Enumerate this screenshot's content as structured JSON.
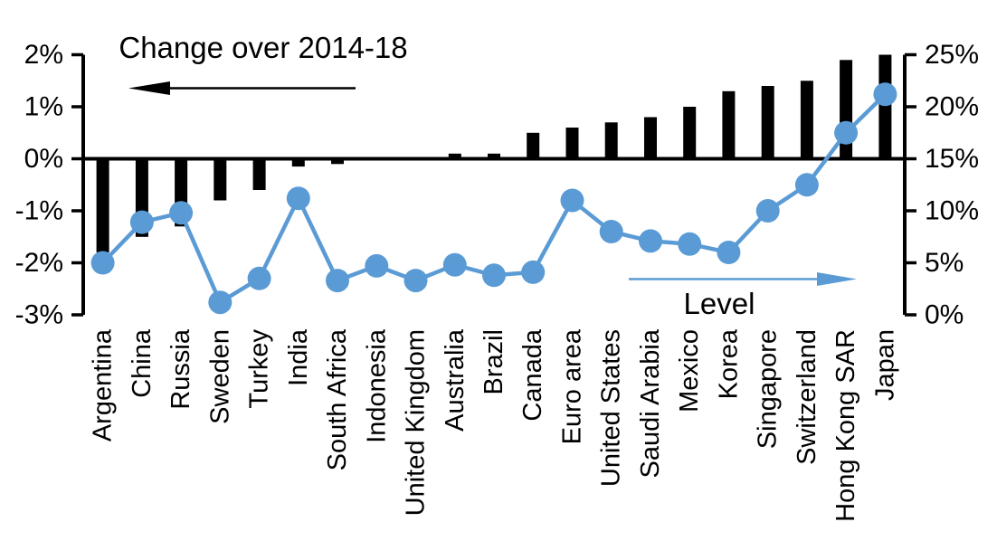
{
  "page": {
    "background": "#ffffff"
  },
  "chart_data": {
    "type": "combo",
    "title": "Change over 2014-18",
    "categories": [
      "Argentina",
      "China",
      "Russia",
      "Sweden",
      "Turkey",
      "India",
      "South Africa",
      "Indonesia",
      "United Kingdom",
      "Australia",
      "Brazil",
      "Canada",
      "Euro area",
      "United States",
      "Saudi Arabia",
      "Mexico",
      "Korea",
      "Singapore",
      "Switzerland",
      "Hong Kong SAR",
      "Japan"
    ],
    "series": [
      {
        "name": "Change over 2014-18",
        "type": "bar",
        "axis": "left",
        "color": "#000000",
        "values": [
          -1.8,
          -1.5,
          -1.3,
          -0.8,
          -0.6,
          -0.15,
          -0.1,
          0,
          0,
          0.1,
          0.1,
          0.5,
          0.6,
          0.7,
          0.8,
          1.0,
          1.3,
          1.4,
          1.5,
          1.9,
          2.0
        ]
      },
      {
        "name": "Level",
        "type": "line",
        "axis": "right",
        "color": "#5B9BD5",
        "values": [
          5.0,
          8.9,
          9.8,
          1.2,
          3.5,
          11.2,
          3.3,
          4.7,
          3.3,
          4.8,
          3.8,
          4.1,
          11.0,
          8.0,
          7.1,
          6.8,
          6.0,
          10.0,
          12.5,
          17.5,
          21.2
        ]
      }
    ],
    "left_axis": {
      "tick_labels": [
        "2%",
        "1%",
        "0%",
        "-1%",
        "-2%",
        "-3%"
      ],
      "tick_values": [
        2,
        1,
        0,
        -1,
        -2,
        -3
      ],
      "min": -3,
      "max": 2
    },
    "right_axis": {
      "tick_labels": [
        "25%",
        "20%",
        "15%",
        "10%",
        "5%",
        "0%"
      ],
      "tick_values": [
        25,
        20,
        15,
        10,
        5,
        0
      ],
      "min": 0,
      "max": 25
    },
    "grid": false,
    "legend_position": "none",
    "annotations": [
      {
        "text": "Change over 2014-18",
        "arrow_direction": "left",
        "series": "bar",
        "color": "#000000"
      },
      {
        "text": "Level",
        "arrow_direction": "right",
        "series": "line",
        "color": "#5B9BD5"
      }
    ]
  }
}
